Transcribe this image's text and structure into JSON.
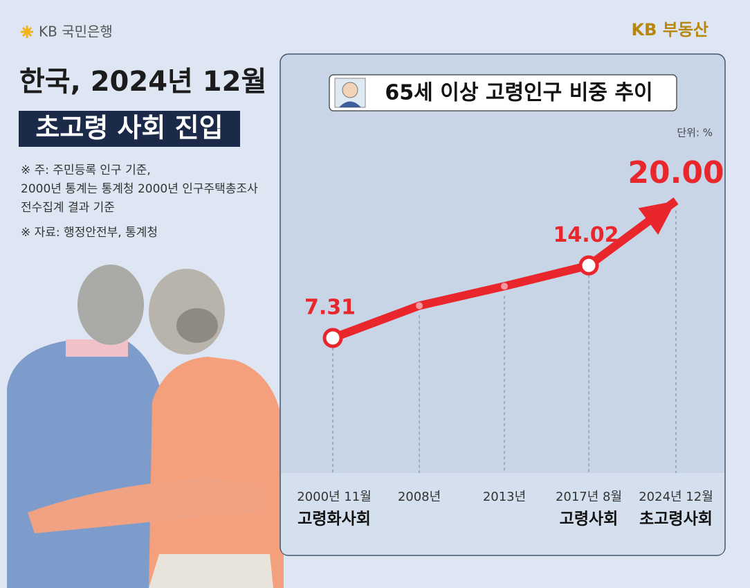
{
  "header": {
    "bank_logo": "KB 국민은행",
    "brand_logo": "KB 부동산",
    "headline": "한국, 2024년 12월",
    "headline_highlight": "초고령 사회 진입",
    "notes": [
      "※ 주: 주민등록 인구 기준,",
      "2000년 통계는 통계청 2000년 인구주택총조사",
      "전수집계 결과 기준"
    ],
    "source": "※ 자료: 행정안전부, 통계청"
  },
  "chart_data": {
    "type": "line",
    "title": "65세 이상 고령인구 비중 추이",
    "unit": "단위: %",
    "categories": [
      "2000년 11월",
      "2008년",
      "2013년",
      "2017년 8월",
      "2024년 12월"
    ],
    "category_notes": [
      "고령화사회",
      null,
      null,
      "고령사회",
      "초고령사회"
    ],
    "values": [
      7.31,
      10.3,
      12.1,
      14.02,
      20
    ],
    "value_labels": [
      "7.31",
      null,
      null,
      "14.02",
      "20.00"
    ],
    "color": "#e8262b"
  }
}
